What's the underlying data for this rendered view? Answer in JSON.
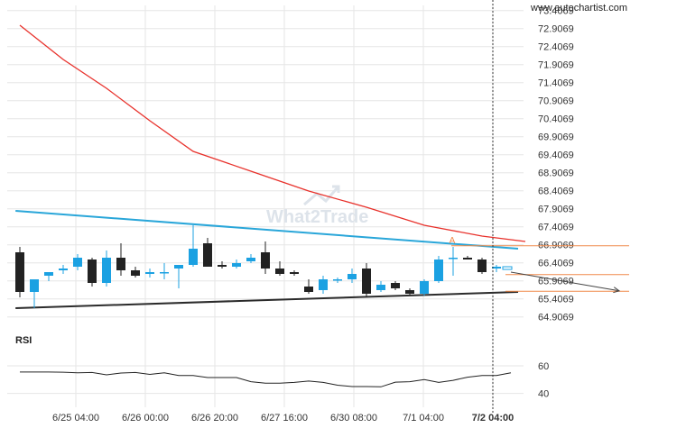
{
  "site_label": "www.autochartist.com",
  "watermark": "What2Trade",
  "colors": {
    "bull": "#1ba1e2",
    "bear": "#222222",
    "ema": "#e8312b",
    "resistance": "#29a6d9",
    "support": "#2b2b2b",
    "level": "#f08a4b",
    "grid": "#e6e6e6",
    "projection": "#444444"
  },
  "chart_data": [
    {
      "type": "candlestick",
      "title": "",
      "y_ticks": [
        "73.4069",
        "72.9069",
        "72.4069",
        "71.9069",
        "71.4069",
        "70.9069",
        "70.4069",
        "69.9069",
        "69.4069",
        "68.9069",
        "68.4069",
        "67.9069",
        "67.4069",
        "66.9069",
        "66.4069",
        "65.9069",
        "65.4069",
        "64.9069"
      ],
      "ylim": [
        64.6,
        73.55
      ],
      "x_ticks": [
        "6/25 04:00",
        "6/26 00:00",
        "6/26 20:00",
        "6/27 16:00",
        "6/30 08:00",
        "7/1 04:00",
        "7/2 04:00"
      ],
      "grid": true,
      "candles": [
        {
          "o": 66.7,
          "h": 66.85,
          "l": 65.45,
          "c": 65.6
        },
        {
          "o": 65.6,
          "h": 65.95,
          "l": 65.15,
          "c": 65.95
        },
        {
          "o": 66.05,
          "h": 66.15,
          "l": 65.9,
          "c": 66.15
        },
        {
          "o": 66.2,
          "h": 66.35,
          "l": 66.1,
          "c": 66.25
        },
        {
          "o": 66.3,
          "h": 66.65,
          "l": 66.2,
          "c": 66.55
        },
        {
          "o": 66.5,
          "h": 66.55,
          "l": 65.75,
          "c": 65.85
        },
        {
          "o": 65.85,
          "h": 66.75,
          "l": 65.75,
          "c": 66.55
        },
        {
          "o": 66.55,
          "h": 66.95,
          "l": 66.05,
          "c": 66.2
        },
        {
          "o": 66.2,
          "h": 66.3,
          "l": 66.0,
          "c": 66.05
        },
        {
          "o": 66.1,
          "h": 66.25,
          "l": 66.0,
          "c": 66.15
        },
        {
          "o": 66.15,
          "h": 66.4,
          "l": 65.95,
          "c": 66.15
        },
        {
          "o": 66.25,
          "h": 66.35,
          "l": 65.7,
          "c": 66.35
        },
        {
          "o": 66.35,
          "h": 67.45,
          "l": 66.3,
          "c": 66.8
        },
        {
          "o": 66.95,
          "h": 67.1,
          "l": 66.3,
          "c": 66.3
        },
        {
          "o": 66.35,
          "h": 66.45,
          "l": 66.25,
          "c": 66.3
        },
        {
          "o": 66.3,
          "h": 66.5,
          "l": 66.25,
          "c": 66.4
        },
        {
          "o": 66.45,
          "h": 66.65,
          "l": 66.4,
          "c": 66.55
        },
        {
          "o": 66.7,
          "h": 67.0,
          "l": 66.1,
          "c": 66.25
        },
        {
          "o": 66.25,
          "h": 66.45,
          "l": 66.05,
          "c": 66.1
        },
        {
          "o": 66.15,
          "h": 66.2,
          "l": 66.05,
          "c": 66.1
        },
        {
          "o": 65.75,
          "h": 65.95,
          "l": 65.55,
          "c": 65.6
        },
        {
          "o": 65.65,
          "h": 66.05,
          "l": 65.55,
          "c": 65.95
        },
        {
          "o": 65.95,
          "h": 66.0,
          "l": 65.85,
          "c": 65.95
        },
        {
          "o": 65.95,
          "h": 66.25,
          "l": 65.85,
          "c": 66.1
        },
        {
          "o": 66.25,
          "h": 66.4,
          "l": 65.45,
          "c": 65.55
        },
        {
          "o": 65.65,
          "h": 65.9,
          "l": 65.6,
          "c": 65.8
        },
        {
          "o": 65.85,
          "h": 65.9,
          "l": 65.65,
          "c": 65.7
        },
        {
          "o": 65.65,
          "h": 65.7,
          "l": 65.5,
          "c": 65.55
        },
        {
          "o": 65.55,
          "h": 65.95,
          "l": 65.5,
          "c": 65.9
        },
        {
          "o": 65.9,
          "h": 66.6,
          "l": 65.85,
          "c": 66.5
        },
        {
          "o": 66.55,
          "h": 66.85,
          "l": 66.05,
          "c": 66.55
        },
        {
          "o": 66.55,
          "h": 66.6,
          "l": 66.5,
          "c": 66.5
        },
        {
          "o": 66.5,
          "h": 66.55,
          "l": 66.1,
          "c": 66.15
        },
        {
          "o": 66.25,
          "h": 66.35,
          "l": 66.15,
          "c": 66.3
        }
      ],
      "ema": [
        {
          "x": 0,
          "y": 73.0
        },
        {
          "x": 3,
          "y": 72.05
        },
        {
          "x": 6,
          "y": 71.25
        },
        {
          "x": 9,
          "y": 70.35
        },
        {
          "x": 12,
          "y": 69.5
        },
        {
          "x": 16,
          "y": 68.95
        },
        {
          "x": 20,
          "y": 68.4
        },
        {
          "x": 24,
          "y": 67.95
        },
        {
          "x": 28,
          "y": 67.45
        },
        {
          "x": 32,
          "y": 67.15
        },
        {
          "x": 35,
          "y": 67.0
        }
      ],
      "resistance_line": [
        {
          "x": -0.3,
          "y": 67.85
        },
        {
          "x": 34.5,
          "y": 66.8
        }
      ],
      "support_line": [
        {
          "x": -0.3,
          "y": 65.15
        },
        {
          "x": 34.5,
          "y": 65.6
        }
      ],
      "levels": [
        66.88,
        66.08,
        65.62
      ],
      "projection": {
        "from": {
          "x": 34.0,
          "y": 66.15
        },
        "to": {
          "x": 41.5,
          "y": 65.63
        }
      },
      "pattern_label": "A",
      "forecast_candle": {
        "o": 66.24,
        "h": 66.3,
        "l": 66.2,
        "c": 66.3
      }
    },
    {
      "type": "line",
      "title": "RSI",
      "y_ticks": [
        "60",
        "40"
      ],
      "ylim": [
        30,
        75
      ],
      "values": [
        55.5,
        55.5,
        55.5,
        55.4,
        55.0,
        55.2,
        53.5,
        54.8,
        55.2,
        53.8,
        55.0,
        53.0,
        53.0,
        51.5,
        51.5,
        51.5,
        48.5,
        47.5,
        47.5,
        48.0,
        49.0,
        48.0,
        46.0,
        45.0,
        45.0,
        44.8,
        48.2,
        48.5,
        50.0,
        48.0,
        49.5,
        51.8,
        53.0,
        53.0,
        55.0
      ]
    }
  ]
}
